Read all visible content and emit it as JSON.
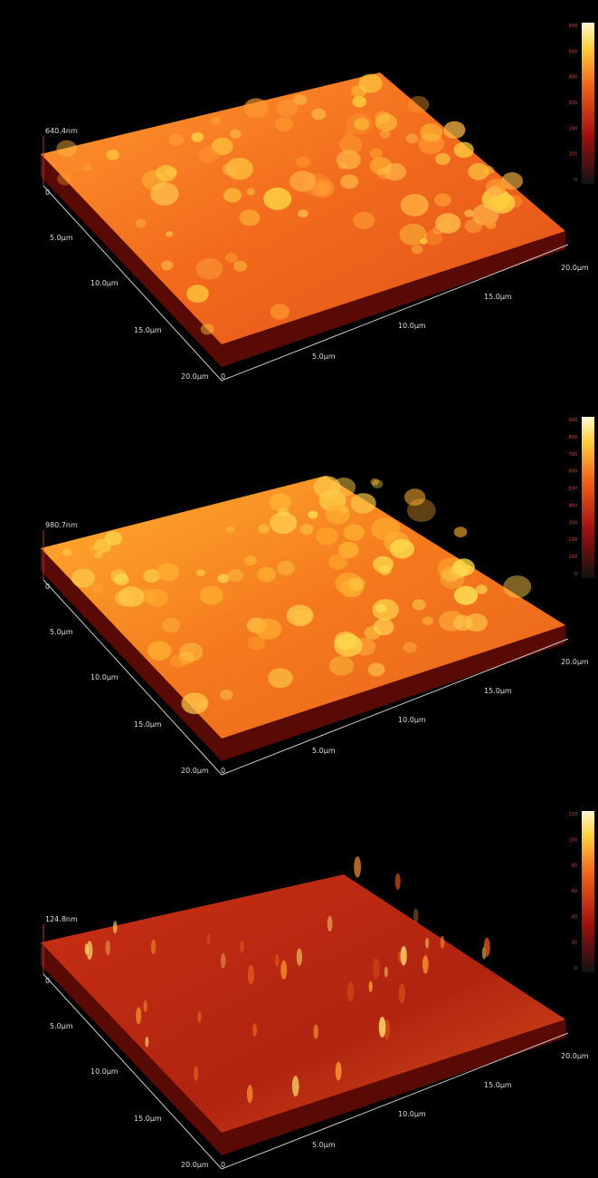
{
  "panels": [
    {
      "z_label": "640.4nm",
      "colorbar_ticks": [
        "600",
        "500",
        "400",
        "300",
        "200",
        "100",
        "0"
      ],
      "left_axis": [
        "0",
        "5.0µm",
        "10.0µm",
        "15.0µm",
        "20.0µm"
      ],
      "front_axis": [
        "0",
        "5.0µm",
        "10.0µm",
        "15.0µm",
        "20.0µm"
      ]
    },
    {
      "z_label": "980.7nm",
      "colorbar_ticks": [
        "900",
        "800",
        "700",
        "600",
        "500",
        "400",
        "300",
        "200",
        "100",
        "0"
      ],
      "left_axis": [
        "0",
        "5.0µm",
        "10.0µm",
        "15.0µm",
        "20.0µm"
      ],
      "front_axis": [
        "0",
        "5.0µm",
        "10.0µm",
        "15.0µm",
        "20.0µm"
      ]
    },
    {
      "z_label": "124.8nm",
      "colorbar_ticks": [
        "120",
        "100",
        "80",
        "60",
        "40",
        "20",
        "0"
      ],
      "left_axis": [
        "0",
        "5.0µm",
        "10.0µm",
        "15.0µm",
        "20.0µm"
      ],
      "front_axis": [
        "0",
        "5.0µm",
        "10.0µm",
        "15.0µm",
        "20.0µm"
      ]
    }
  ]
}
